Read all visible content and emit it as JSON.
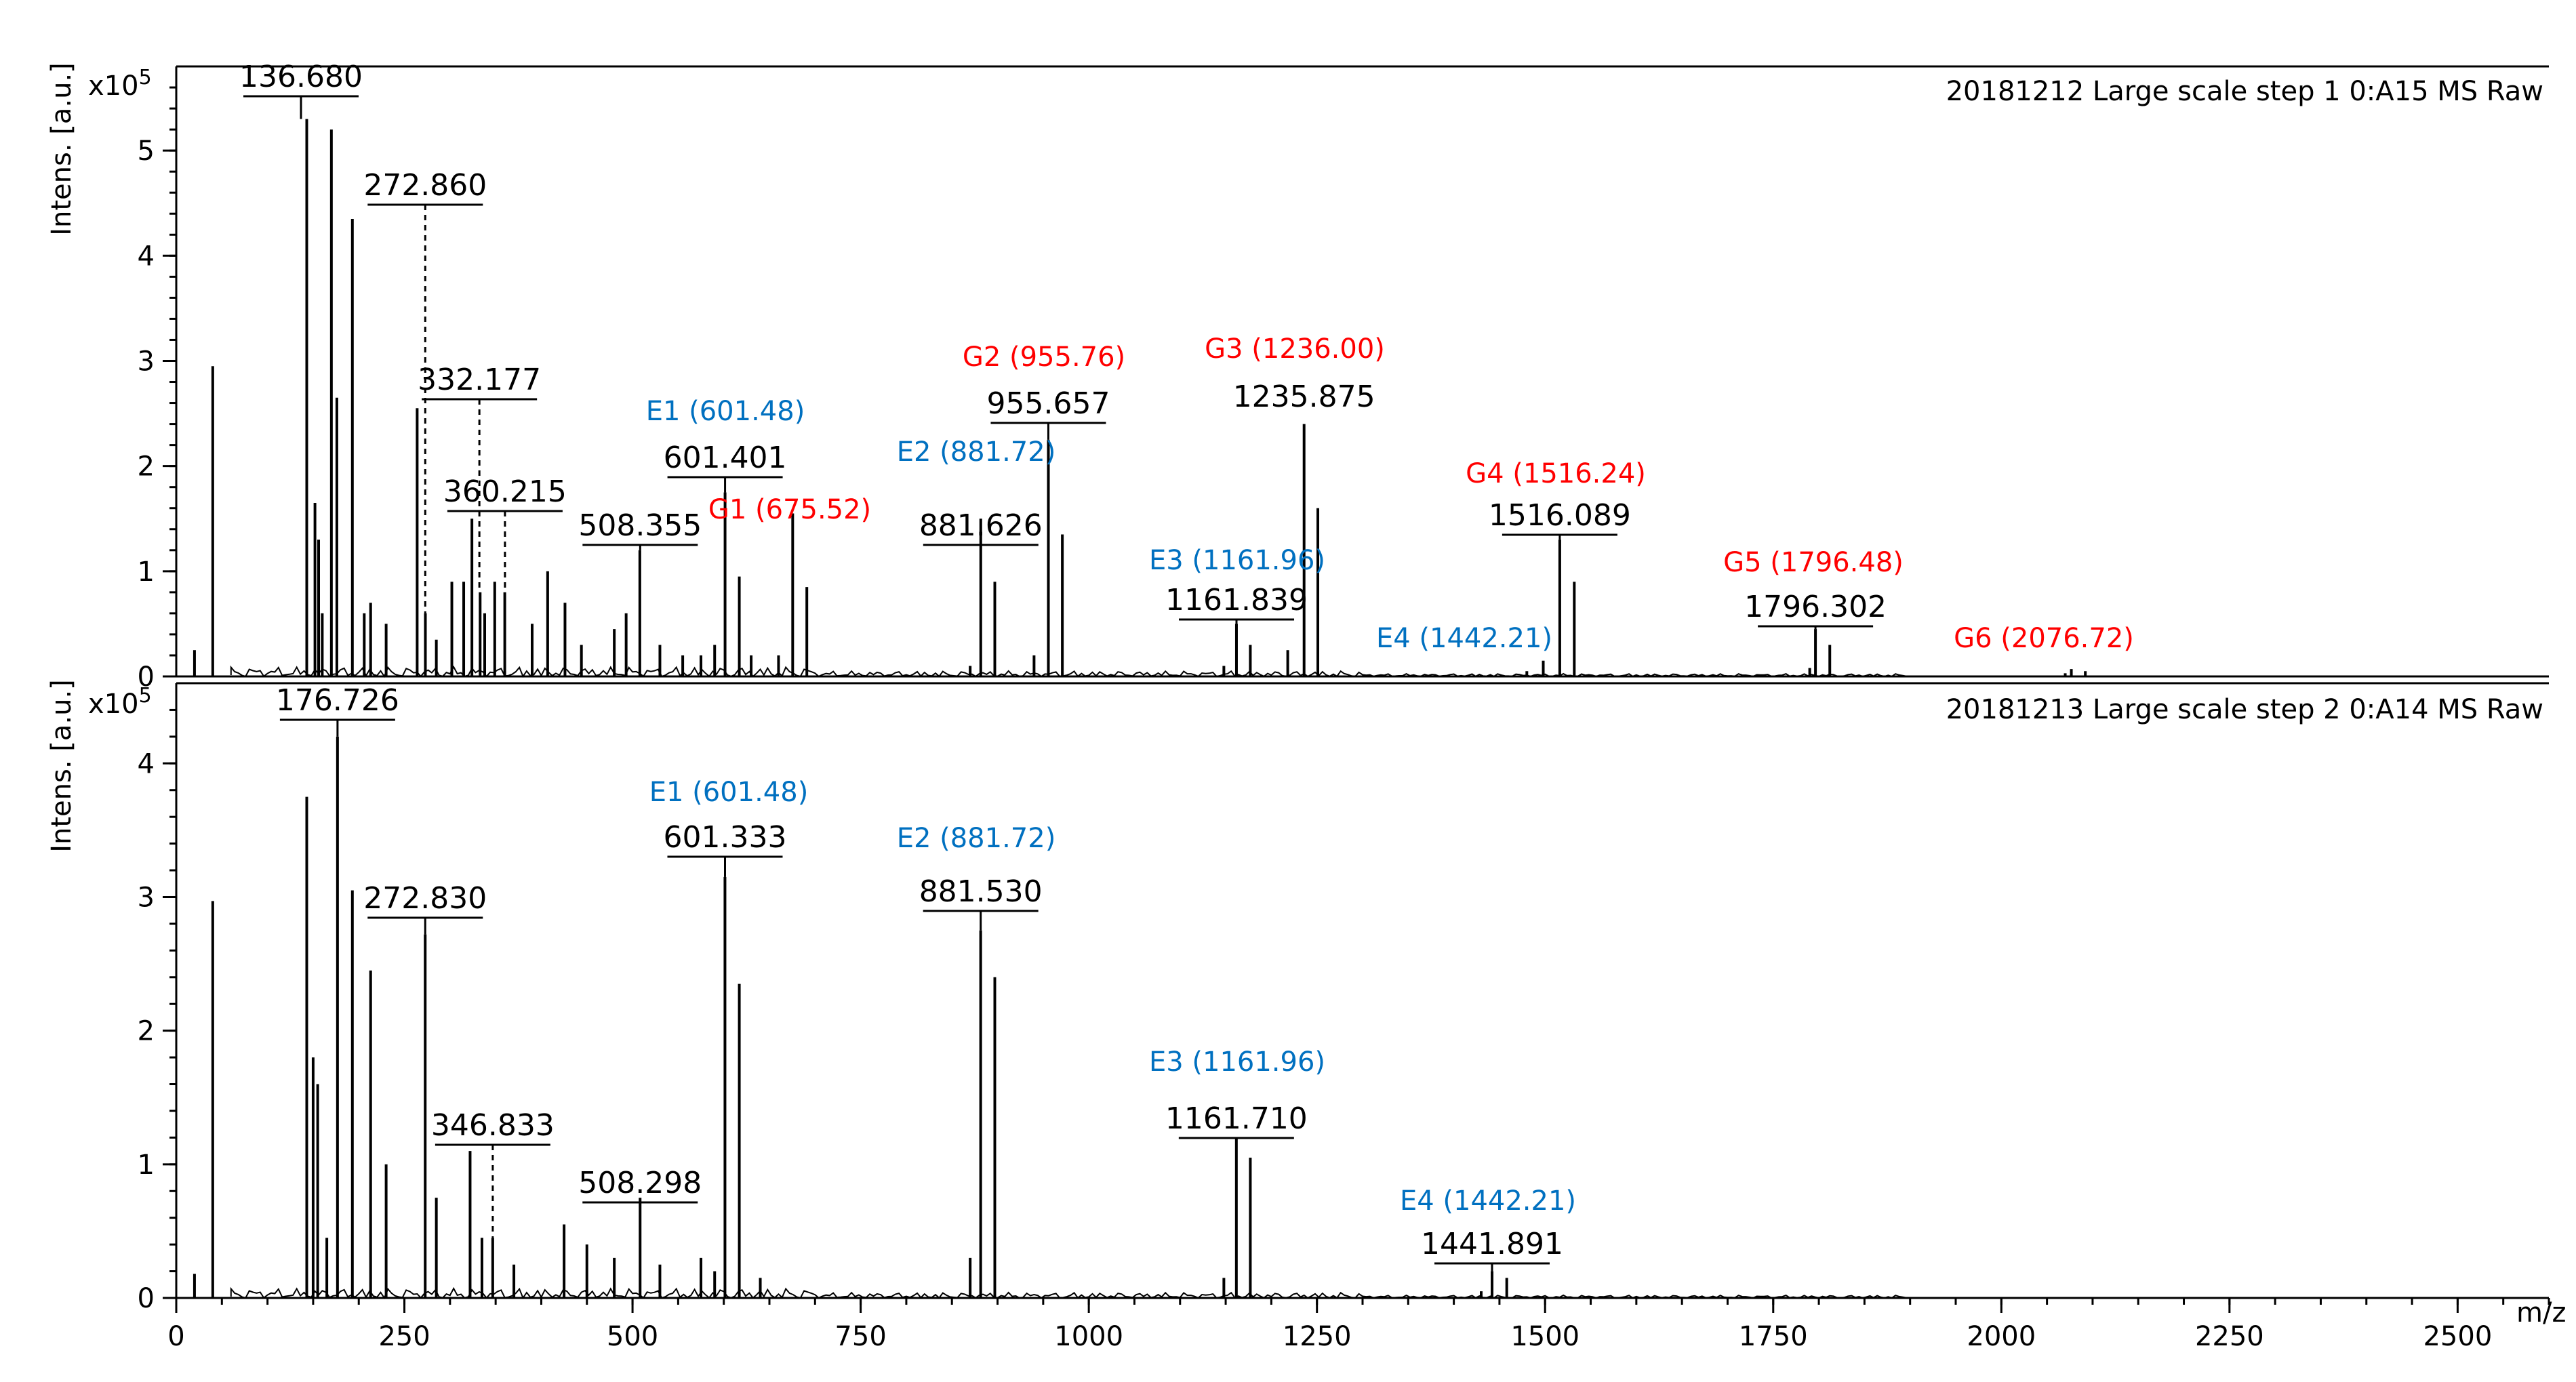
{
  "colors": {
    "E_series": "#0070c0",
    "G_series": "#ff0000",
    "ink": "#000000"
  },
  "chart_data": [
    {
      "type": "bar",
      "title": "20181212 Large scale step 1 0:A15 MS Raw",
      "ylabel": "Intens. [a.u.]",
      "y_exponent": "x10",
      "y_exponent_power": "5",
      "xlabel": "m/z",
      "xlim": [
        0,
        2600
      ],
      "ylim": [
        0,
        5.8
      ],
      "y_ticks": [
        0,
        1,
        2,
        3,
        4,
        5
      ],
      "x": [
        20,
        40,
        143,
        152,
        156,
        160,
        170,
        176,
        193,
        206,
        213,
        230,
        264,
        273,
        285,
        302,
        315,
        324,
        333,
        338,
        349,
        360,
        390,
        407,
        426,
        444,
        480,
        493,
        508,
        530,
        555,
        575,
        590,
        601.4,
        617,
        630,
        660,
        675.5,
        691,
        870,
        881.6,
        897,
        940,
        955.7,
        971,
        1148,
        1161.8,
        1177,
        1218,
        1235.9,
        1251,
        1480,
        1498,
        1516.1,
        1532,
        1790,
        1796.3,
        1812,
        2070,
        2076.7,
        2092
      ],
      "values": [
        0.25,
        2.95,
        5.3,
        1.65,
        1.3,
        0.6,
        5.2,
        2.65,
        4.35,
        0.6,
        0.7,
        0.5,
        2.55,
        0.6,
        0.35,
        0.9,
        0.9,
        1.5,
        0.8,
        0.6,
        0.9,
        0.8,
        0.5,
        1.0,
        0.7,
        0.3,
        0.45,
        0.6,
        1.2,
        0.3,
        0.2,
        0.2,
        0.3,
        1.75,
        0.95,
        0.2,
        0.2,
        1.55,
        0.85,
        0.1,
        1.5,
        0.9,
        0.2,
        2.25,
        1.35,
        0.1,
        0.5,
        0.3,
        0.25,
        2.4,
        1.6,
        0.05,
        0.15,
        1.3,
        0.9,
        0.08,
        0.45,
        0.3,
        0.03,
        0.07,
        0.05
      ],
      "peak_labels": [
        {
          "mz": 136.68,
          "text": "136.680",
          "underline": true
        },
        {
          "mz": 272.86,
          "text": "272.860",
          "underline": true
        },
        {
          "mz": 332.177,
          "text": "332.177",
          "underline": true
        },
        {
          "mz": 360.215,
          "text": "360.215",
          "underline": true
        },
        {
          "mz": 508.355,
          "text": "508.355",
          "underline": true
        },
        {
          "mz": 601.401,
          "text": "601.401",
          "underline": true
        },
        {
          "mz": 881.626,
          "text": "881.626",
          "underline": true
        },
        {
          "mz": 955.657,
          "text": "955.657",
          "underline": true
        },
        {
          "mz": 1235.875,
          "text": "1235.875",
          "underline": false
        },
        {
          "mz": 1161.839,
          "text": "1161.839",
          "underline": true
        },
        {
          "mz": 1516.089,
          "text": "1516.089",
          "underline": true
        },
        {
          "mz": 1796.302,
          "text": "1796.302",
          "underline": true
        }
      ],
      "annotations": [
        {
          "text": "E1 (601.48)",
          "series": "E",
          "mz": 601.48
        },
        {
          "text": "G1 (675.52)",
          "series": "G",
          "mz": 675.52
        },
        {
          "text": "E2 (881.72)",
          "series": "E",
          "mz": 881.72
        },
        {
          "text": "G2 (955.76)",
          "series": "G",
          "mz": 955.76
        },
        {
          "text": "G3 (1236.00)",
          "series": "G",
          "mz": 1236.0
        },
        {
          "text": "E3 (1161.96)",
          "series": "E",
          "mz": 1161.96
        },
        {
          "text": "G4 (1516.24)",
          "series": "G",
          "mz": 1516.24
        },
        {
          "text": "E4 (1442.21)",
          "series": "E",
          "mz": 1442.21
        },
        {
          "text": "G5 (1796.48)",
          "series": "G",
          "mz": 1796.48
        },
        {
          "text": "G6 (2076.72)",
          "series": "G",
          "mz": 2076.72
        }
      ]
    },
    {
      "type": "bar",
      "title": "20181213 Large scale step 2 0:A14 MS Raw",
      "ylabel": "Intens. [a.u.]",
      "y_exponent": "x10",
      "y_exponent_power": "5",
      "xlabel": "m/z",
      "xlim": [
        0,
        2600
      ],
      "ylim": [
        0,
        4.6
      ],
      "y_ticks": [
        0,
        1,
        2,
        3,
        4
      ],
      "x_ticks": [
        0,
        250,
        500,
        750,
        1000,
        1250,
        1500,
        1750,
        2000,
        2250,
        2500
      ],
      "x": [
        20,
        40,
        143,
        150,
        155,
        165,
        176.7,
        193,
        213,
        230,
        272.8,
        285,
        322,
        335,
        346.8,
        370,
        425,
        450,
        480,
        508.3,
        530,
        575,
        590,
        601.3,
        617,
        640,
        870,
        881.5,
        897,
        1148,
        1161.7,
        1177,
        1430,
        1441.9,
        1458
      ],
      "values": [
        0.18,
        2.97,
        3.75,
        1.8,
        1.6,
        0.45,
        4.2,
        3.05,
        2.45,
        1.0,
        2.72,
        0.75,
        1.1,
        0.45,
        0.45,
        0.25,
        0.55,
        0.4,
        0.3,
        0.75,
        0.25,
        0.3,
        0.2,
        3.15,
        2.35,
        0.15,
        0.3,
        2.75,
        2.4,
        0.15,
        1.2,
        1.05,
        0.05,
        0.2,
        0.15
      ],
      "peak_labels": [
        {
          "mz": 176.726,
          "text": "176.726",
          "underline": true
        },
        {
          "mz": 272.83,
          "text": "272.830",
          "underline": true
        },
        {
          "mz": 346.833,
          "text": "346.833",
          "underline": true
        },
        {
          "mz": 508.298,
          "text": "508.298",
          "underline": true
        },
        {
          "mz": 601.333,
          "text": "601.333",
          "underline": true
        },
        {
          "mz": 881.53,
          "text": "881.530",
          "underline": true
        },
        {
          "mz": 1161.71,
          "text": "1161.710",
          "underline": true
        },
        {
          "mz": 1441.891,
          "text": "1441.891",
          "underline": true
        }
      ],
      "annotations": [
        {
          "text": "E1 (601.48)",
          "series": "E",
          "mz": 601.48
        },
        {
          "text": "E2 (881.72)",
          "series": "E",
          "mz": 881.72
        },
        {
          "text": "E3 (1161.96)",
          "series": "E",
          "mz": 1161.96
        },
        {
          "text": "E4 (1442.21)",
          "series": "E",
          "mz": 1442.21
        }
      ]
    }
  ]
}
